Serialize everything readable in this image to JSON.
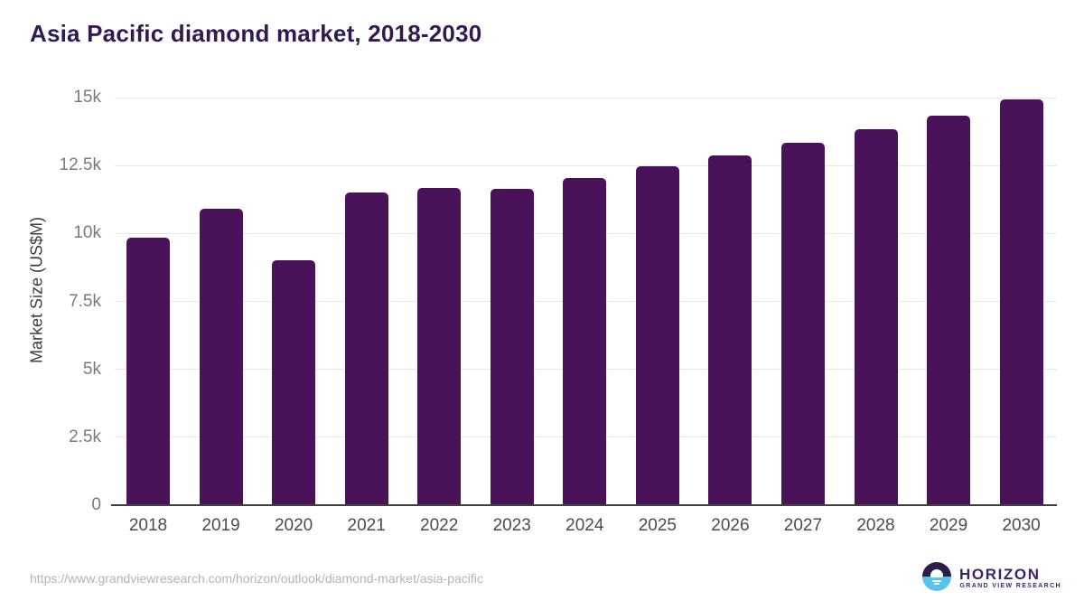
{
  "chart_data": {
    "type": "bar",
    "title": "Asia Pacific diamond market, 2018-2030",
    "xlabel": "",
    "ylabel": "Market Size (US$M)",
    "categories": [
      "2018",
      "2019",
      "2020",
      "2021",
      "2022",
      "2023",
      "2024",
      "2025",
      "2026",
      "2027",
      "2028",
      "2029",
      "2030"
    ],
    "values": [
      9860,
      10900,
      9000,
      11500,
      11670,
      11640,
      12040,
      12470,
      12880,
      13330,
      13830,
      14350,
      14920
    ],
    "ylim": [
      0,
      15000
    ],
    "yticks": [
      {
        "value": 0,
        "label": "0"
      },
      {
        "value": 2500,
        "label": "2.5k"
      },
      {
        "value": 5000,
        "label": "5k"
      },
      {
        "value": 7500,
        "label": "7.5k"
      },
      {
        "value": 10000,
        "label": "10k"
      },
      {
        "value": 12500,
        "label": "12.5k"
      },
      {
        "value": 15000,
        "label": "15k"
      }
    ],
    "grid": "horizontal",
    "legend": "none",
    "bar_color": "#4a1259"
  },
  "footer": {
    "source_url": "https://www.grandviewresearch.com/horizon/outlook/diamond-market/asia-pacific",
    "logo": {
      "brand": "HORIZON",
      "sub_brand": "GRAND VIEW RESEARCH",
      "brand_color": "#3d2462",
      "mark_top_color": "#2c1e45",
      "mark_bottom_color": "#58c4e9"
    }
  }
}
